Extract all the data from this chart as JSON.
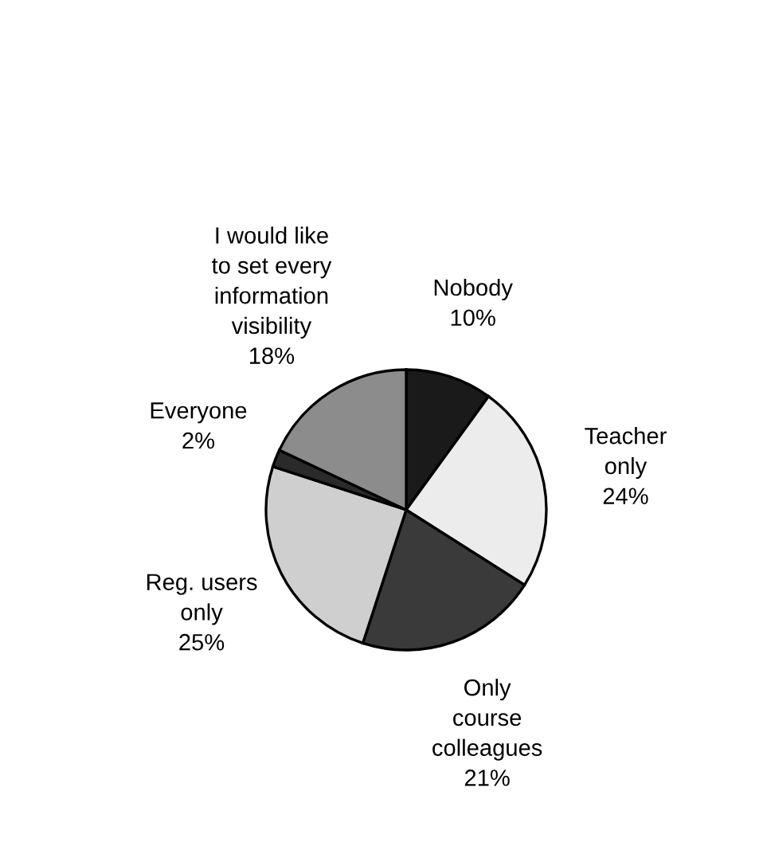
{
  "chart_data": {
    "type": "pie",
    "categories": [
      "Nobody",
      "Teacher\nonly",
      "Only\ncourse\ncolleagues",
      "Reg. users\nonly",
      "Everyone",
      "I would like\nto set every\ninformation\nvisibility"
    ],
    "values": [
      10,
      24,
      21,
      25,
      2,
      18
    ],
    "value_labels": [
      "10%",
      "24%",
      "21%",
      "25%",
      "2%",
      "18%"
    ],
    "colors": [
      "#1a1a1a",
      "#ececec",
      "#3a3a3a",
      "#cfcfcf",
      "#2a2a2a",
      "#8c8c8c"
    ]
  }
}
